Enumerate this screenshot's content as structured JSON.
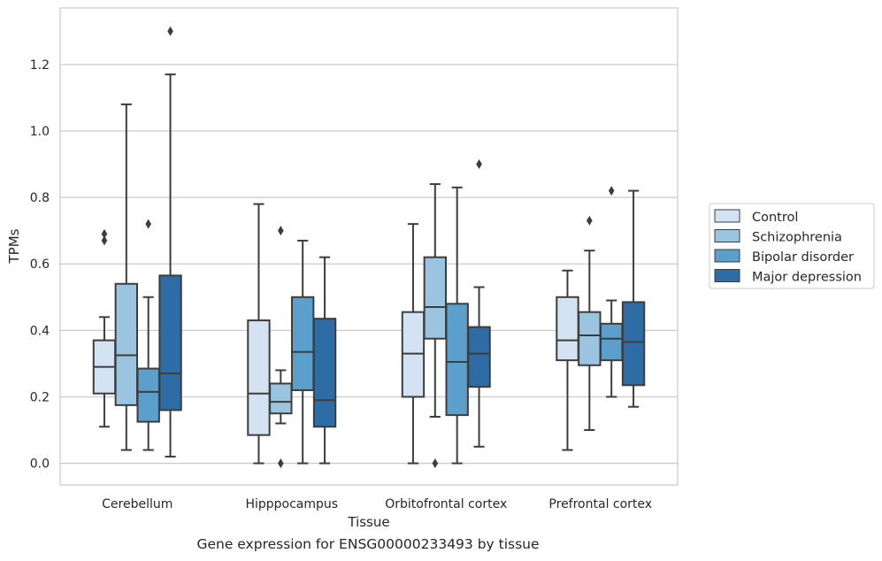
{
  "caption": "Gene expression for ENSG00000233493 by tissue",
  "chart_data": {
    "type": "box",
    "xlabel": "Tissue",
    "ylabel": "TPMs",
    "ylim": [
      -0.065,
      1.37
    ],
    "yticks": [
      0.0,
      0.2,
      0.4,
      0.6,
      0.8,
      1.0,
      1.2
    ],
    "ytick_labels": [
      "0.0",
      "0.2",
      "0.4",
      "0.6",
      "0.8",
      "1.0",
      "1.2"
    ],
    "grid": "horizontal",
    "legend_position": "right",
    "categories": [
      "Cerebellum",
      "Hipppocampus",
      "Orbitofrontal cortex",
      "Prefrontal cortex"
    ],
    "series": [
      {
        "name": "Control",
        "color": "#d3e3f3",
        "boxes": [
          {
            "whislo": 0.11,
            "q1": 0.21,
            "med": 0.29,
            "q3": 0.37,
            "whishi": 0.44,
            "fliers": [
              0.67,
              0.69
            ]
          },
          {
            "whislo": 0.0,
            "q1": 0.085,
            "med": 0.21,
            "q3": 0.43,
            "whishi": 0.78,
            "fliers": []
          },
          {
            "whislo": 0.0,
            "q1": 0.2,
            "med": 0.33,
            "q3": 0.455,
            "whishi": 0.72,
            "fliers": []
          },
          {
            "whislo": 0.04,
            "q1": 0.31,
            "med": 0.37,
            "q3": 0.5,
            "whishi": 0.58,
            "fliers": []
          }
        ]
      },
      {
        "name": "Schizophrenia",
        "color": "#9ac4df",
        "boxes": [
          {
            "whislo": 0.04,
            "q1": 0.175,
            "med": 0.325,
            "q3": 0.54,
            "whishi": 1.08,
            "fliers": []
          },
          {
            "whislo": 0.12,
            "q1": 0.15,
            "med": 0.185,
            "q3": 0.24,
            "whishi": 0.28,
            "fliers": [
              0.0,
              0.7
            ]
          },
          {
            "whislo": 0.14,
            "q1": 0.375,
            "med": 0.47,
            "q3": 0.62,
            "whishi": 0.84,
            "fliers": [
              0.0
            ]
          },
          {
            "whislo": 0.1,
            "q1": 0.295,
            "med": 0.385,
            "q3": 0.455,
            "whishi": 0.64,
            "fliers": [
              0.73
            ]
          }
        ]
      },
      {
        "name": "Bipolar disorder",
        "color": "#5b9fcd",
        "boxes": [
          {
            "whislo": 0.04,
            "q1": 0.125,
            "med": 0.215,
            "q3": 0.285,
            "whishi": 0.5,
            "fliers": [
              0.72
            ]
          },
          {
            "whislo": 0.0,
            "q1": 0.22,
            "med": 0.335,
            "q3": 0.5,
            "whishi": 0.67,
            "fliers": []
          },
          {
            "whislo": 0.0,
            "q1": 0.145,
            "med": 0.305,
            "q3": 0.48,
            "whishi": 0.83,
            "fliers": []
          },
          {
            "whislo": 0.2,
            "q1": 0.31,
            "med": 0.375,
            "q3": 0.42,
            "whishi": 0.49,
            "fliers": [
              0.82
            ]
          }
        ]
      },
      {
        "name": "Major depression",
        "color": "#2e6ca6",
        "boxes": [
          {
            "whislo": 0.02,
            "q1": 0.16,
            "med": 0.27,
            "q3": 0.565,
            "whishi": 1.17,
            "fliers": [
              1.3
            ]
          },
          {
            "whislo": 0.0,
            "q1": 0.11,
            "med": 0.19,
            "q3": 0.435,
            "whishi": 0.62,
            "fliers": []
          },
          {
            "whislo": 0.05,
            "q1": 0.23,
            "med": 0.33,
            "q3": 0.41,
            "whishi": 0.53,
            "fliers": [
              0.9
            ]
          },
          {
            "whislo": 0.17,
            "q1": 0.235,
            "med": 0.365,
            "q3": 0.485,
            "whishi": 0.82,
            "fliers": []
          }
        ]
      }
    ]
  }
}
